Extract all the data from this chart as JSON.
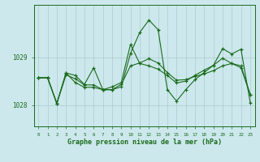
{
  "xlabel": "Graphe pression niveau de la mer (hPa)",
  "bg_color": "#cce8ed",
  "grid_color": "#aacccc",
  "line_color": "#1a6b1a",
  "ylim": [
    1027.55,
    1030.1
  ],
  "xlim": [
    -0.5,
    23.5
  ],
  "yticks": [
    1028,
    1029
  ],
  "xtick_labels": [
    "0",
    "1",
    "2",
    "3",
    "4",
    "5",
    "6",
    "7",
    "8",
    "9",
    "10",
    "11",
    "12",
    "13",
    "14",
    "15",
    "16",
    "17",
    "18",
    "19",
    "20",
    "21",
    "22",
    "23"
  ],
  "series": {
    "line1": [
      1028.57,
      1028.57,
      1028.03,
      1028.63,
      1028.55,
      1028.42,
      1028.42,
      1028.32,
      1028.38,
      1028.47,
      1029.27,
      1028.87,
      1028.82,
      1028.75,
      1028.62,
      1028.46,
      1028.5,
      1028.62,
      1028.73,
      1028.83,
      1028.98,
      1028.87,
      1028.82,
      1028.22
    ],
    "line2": [
      1028.57,
      1028.57,
      1028.03,
      1028.67,
      1028.62,
      1028.43,
      1028.78,
      1028.32,
      1028.32,
      1028.38,
      1029.08,
      1029.52,
      1029.78,
      1029.58,
      1028.32,
      1028.08,
      1028.32,
      1028.53,
      1028.68,
      1028.83,
      1029.18,
      1029.07,
      1029.17,
      1028.05
    ],
    "line3": [
      1028.57,
      1028.57,
      1028.03,
      1028.67,
      1028.47,
      1028.37,
      1028.37,
      1028.32,
      1028.32,
      1028.43,
      1028.82,
      1028.88,
      1028.97,
      1028.88,
      1028.68,
      1028.52,
      1028.53,
      1028.6,
      1028.65,
      1028.72,
      1028.82,
      1028.87,
      1028.78,
      1028.22
    ]
  }
}
